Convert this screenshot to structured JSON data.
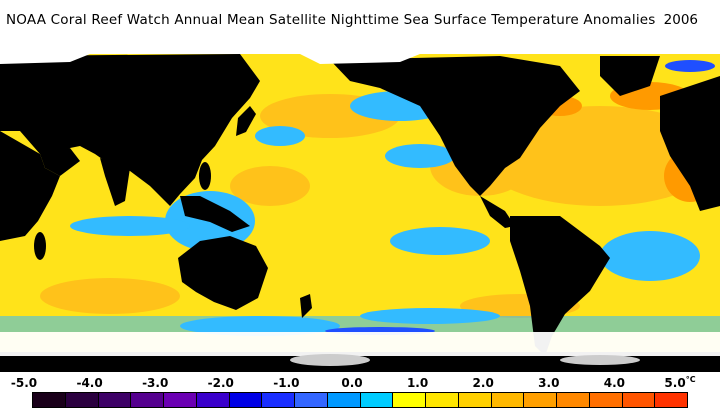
{
  "title": "NOAA Coral Reef Watch Annual Mean Satellite Nighttime Sea Surface Temperature Anomalies",
  "year": "2006",
  "colorbar": {
    "tick_labels": [
      "-5.0",
      "-4.0",
      "-3.0",
      "-2.0",
      "-1.0",
      "0.0",
      "1.0",
      "2.0",
      "3.0",
      "4.0",
      "5.0"
    ],
    "unit": "°C",
    "colors": [
      "#1a001a",
      "#2b0040",
      "#3d0066",
      "#55008f",
      "#6b00b3",
      "#3a00cc",
      "#0000e6",
      "#1a2eff",
      "#3366ff",
      "#0099ff",
      "#00ccff",
      "#ffff00",
      "#ffe600",
      "#ffd000",
      "#ffb800",
      "#ff9f00",
      "#ff8800",
      "#ff6f00",
      "#ff5500",
      "#ff3300"
    ]
  },
  "map_colors": {
    "ocean_near_normal": "#ffe31a",
    "ocean_warm": "#ffc21a",
    "ocean_warmer": "#ff9a00",
    "ocean_cool": "#33bbff",
    "ocean_colder": "#1f4fff",
    "land": "#000000",
    "sea_ice": "#ffffff"
  }
}
